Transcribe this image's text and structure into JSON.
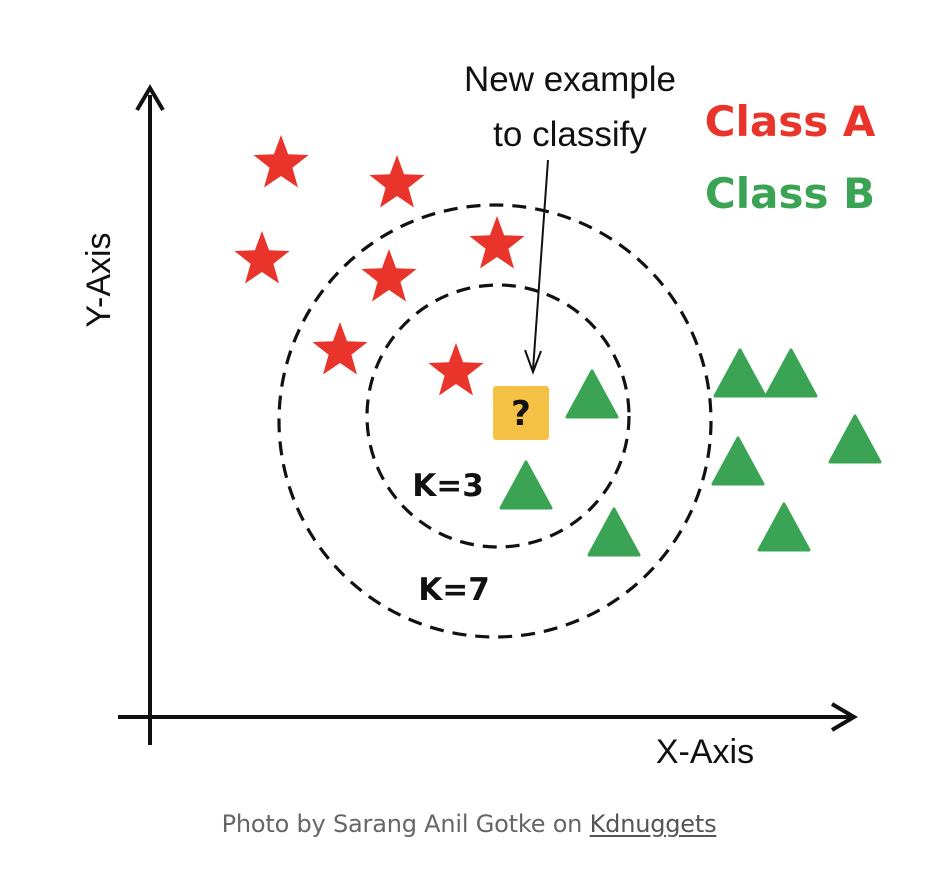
{
  "figure": {
    "y_axis_label": "Y-Axis",
    "x_axis_label": "X-Axis",
    "legend": [
      {
        "label": "Class A",
        "color": "#e8342a"
      },
      {
        "label": "Class B",
        "color": "#3aa454"
      }
    ],
    "annotation_line1": "New example",
    "annotation_line2": "to classify",
    "query_symbol": "?",
    "query_color": "#f4c144",
    "k_inner_label": "K=3",
    "k_outer_label": "K=7",
    "class_a_icon": "red-star-icon",
    "class_b_icon": "green-triangle-icon"
  },
  "caption": {
    "prefix": "Photo by Sarang Anil Gotke on ",
    "link_text": "Kdnuggets"
  }
}
